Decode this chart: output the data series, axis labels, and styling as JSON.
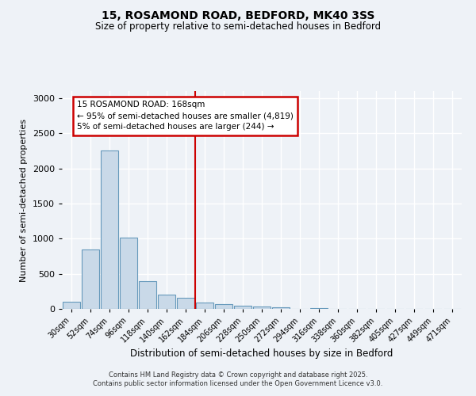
{
  "title1": "15, ROSAMOND ROAD, BEDFORD, MK40 3SS",
  "title2": "Size of property relative to semi-detached houses in Bedford",
  "xlabel": "Distribution of semi-detached houses by size in Bedford",
  "ylabel": "Number of semi-detached properties",
  "bar_color": "#c9d9e8",
  "bar_edge_color": "#6699bb",
  "categories": [
    "30sqm",
    "52sqm",
    "74sqm",
    "96sqm",
    "118sqm",
    "140sqm",
    "162sqm",
    "184sqm",
    "206sqm",
    "228sqm",
    "250sqm",
    "272sqm",
    "294sqm",
    "316sqm",
    "338sqm",
    "360sqm",
    "382sqm",
    "405sqm",
    "427sqm",
    "449sqm",
    "471sqm"
  ],
  "values": [
    105,
    850,
    2250,
    1020,
    400,
    205,
    160,
    85,
    65,
    50,
    35,
    25,
    5,
    15,
    5,
    2,
    2,
    1,
    0,
    0,
    0
  ],
  "ylim": [
    0,
    3100
  ],
  "yticks": [
    0,
    500,
    1000,
    1500,
    2000,
    2500,
    3000
  ],
  "vline_idx": 6,
  "vline_color": "#cc0000",
  "annotation_line1": "15 ROSAMOND ROAD: 168sqm",
  "annotation_line2": "← 95% of semi-detached houses are smaller (4,819)",
  "annotation_line3": "5% of semi-detached houses are larger (244) →",
  "annotation_box_color": "#cc0000",
  "footer1": "Contains HM Land Registry data © Crown copyright and database right 2025.",
  "footer2": "Contains public sector information licensed under the Open Government Licence v3.0.",
  "background_color": "#eef2f7",
  "plot_bg_color": "#eef2f7",
  "grid_color": "#ffffff"
}
